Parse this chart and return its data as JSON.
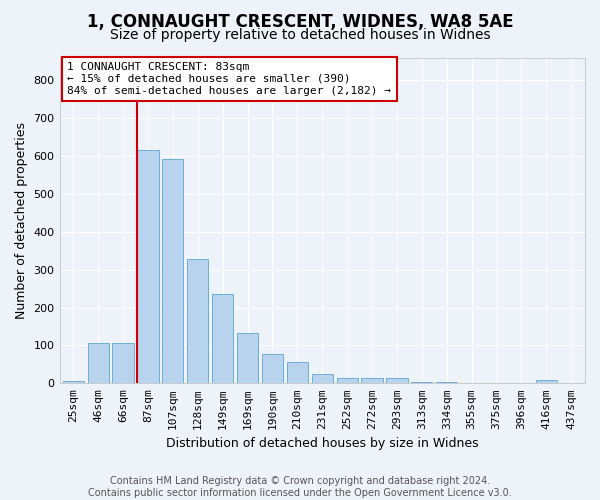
{
  "title": "1, CONNAUGHT CRESCENT, WIDNES, WA8 5AE",
  "subtitle": "Size of property relative to detached houses in Widnes",
  "xlabel": "Distribution of detached houses by size in Widnes",
  "ylabel": "Number of detached properties",
  "categories": [
    "25sqm",
    "46sqm",
    "66sqm",
    "87sqm",
    "107sqm",
    "128sqm",
    "149sqm",
    "169sqm",
    "190sqm",
    "210sqm",
    "231sqm",
    "252sqm",
    "272sqm",
    "293sqm",
    "313sqm",
    "334sqm",
    "355sqm",
    "375sqm",
    "396sqm",
    "416sqm",
    "437sqm"
  ],
  "values": [
    7,
    107,
    107,
    615,
    592,
    328,
    237,
    133,
    78,
    55,
    25,
    13,
    15,
    15,
    4,
    4,
    0,
    0,
    0,
    8,
    0
  ],
  "bar_color": "#b8d3ee",
  "bar_edge_color": "#6aaed6",
  "vline_color": "#cc0000",
  "property_bin": 3,
  "annotation_text": "1 CONNAUGHT CRESCENT: 83sqm\n← 15% of detached houses are smaller (390)\n84% of semi-detached houses are larger (2,182) →",
  "annotation_box_facecolor": "#ffffff",
  "annotation_box_edgecolor": "#cc0000",
  "ylim": [
    0,
    860
  ],
  "yticks": [
    0,
    100,
    200,
    300,
    400,
    500,
    600,
    700,
    800
  ],
  "footer_line1": "Contains HM Land Registry data © Crown copyright and database right 2024.",
  "footer_line2": "Contains public sector information licensed under the Open Government Licence v3.0.",
  "background_color": "#eef2f9",
  "grid_color": "#ffffff",
  "title_fontsize": 12,
  "subtitle_fontsize": 10,
  "xlabel_fontsize": 9,
  "ylabel_fontsize": 9,
  "tick_fontsize": 8,
  "annotation_fontsize": 8,
  "footer_fontsize": 7
}
